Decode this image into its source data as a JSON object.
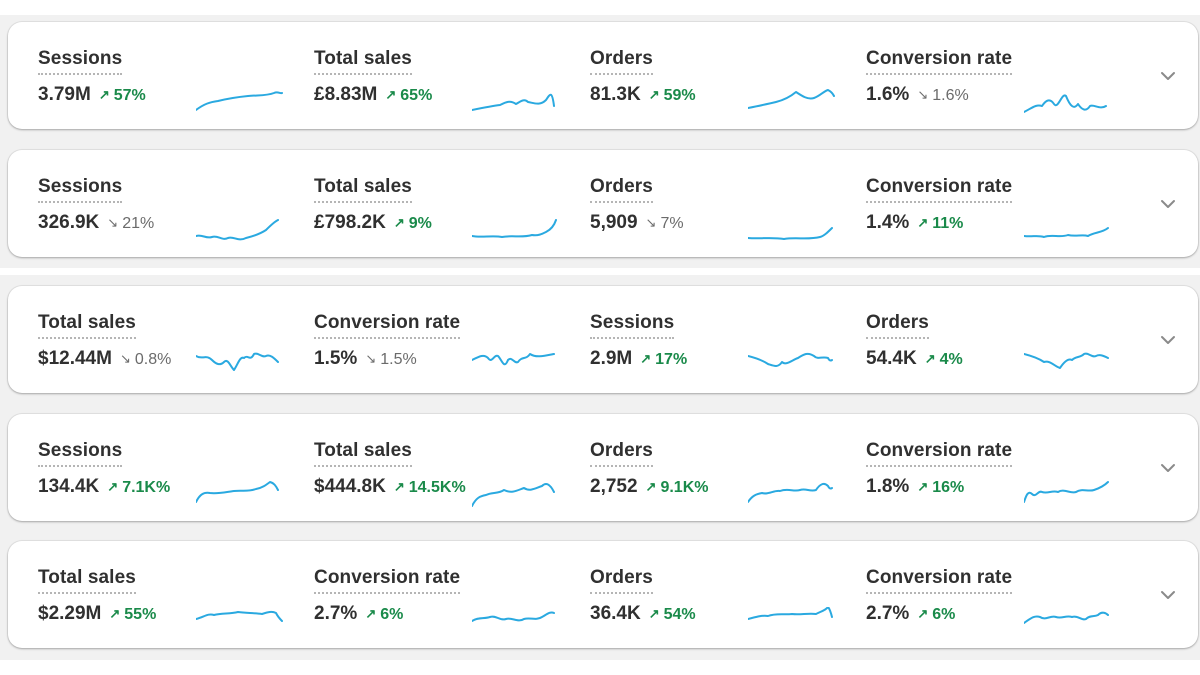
{
  "colors": {
    "sparkline": "#2aa9e0",
    "trend_up": "#1a8a4a",
    "trend_down": "#6b6b6b",
    "chevron": "#8a8a8a"
  },
  "icons": {
    "expand": "chevron-down-icon",
    "trend_up": "arrow-up-right-icon",
    "trend_down": "arrow-down-right-icon"
  },
  "cards": [
    {
      "metrics": [
        {
          "label": "Sessions",
          "value": "3.79M",
          "trend": "57%",
          "direction": "up"
        },
        {
          "label": "Total sales",
          "value": "£8.83M",
          "trend": "65%",
          "direction": "up"
        },
        {
          "label": "Orders",
          "value": "81.3K",
          "trend": "59%",
          "direction": "up"
        },
        {
          "label": "Conversion rate",
          "value": "1.6%",
          "trend": "1.6%",
          "direction": "down"
        }
      ]
    },
    {
      "metrics": [
        {
          "label": "Sessions",
          "value": "326.9K",
          "trend": "21%",
          "direction": "down"
        },
        {
          "label": "Total sales",
          "value": "£798.2K",
          "trend": "9%",
          "direction": "up"
        },
        {
          "label": "Orders",
          "value": "5,909",
          "trend": "7%",
          "direction": "down"
        },
        {
          "label": "Conversion rate",
          "value": "1.4%",
          "trend": "11%",
          "direction": "up"
        }
      ]
    },
    {
      "metrics": [
        {
          "label": "Total sales",
          "value": "$12.44M",
          "trend": "0.8%",
          "direction": "down"
        },
        {
          "label": "Conversion rate",
          "value": "1.5%",
          "trend": "1.5%",
          "direction": "down"
        },
        {
          "label": "Sessions",
          "value": "2.9M",
          "trend": "17%",
          "direction": "up"
        },
        {
          "label": "Orders",
          "value": "54.4K",
          "trend": "4%",
          "direction": "up"
        }
      ]
    },
    {
      "metrics": [
        {
          "label": "Sessions",
          "value": "134.4K",
          "trend": "7.1K%",
          "direction": "up"
        },
        {
          "label": "Total sales",
          "value": "$444.8K",
          "trend": "14.5K%",
          "direction": "up"
        },
        {
          "label": "Orders",
          "value": "2,752",
          "trend": "9.1K%",
          "direction": "up"
        },
        {
          "label": "Conversion rate",
          "value": "1.8%",
          "trend": "16%",
          "direction": "up"
        }
      ]
    },
    {
      "metrics": [
        {
          "label": "Total sales",
          "value": "$2.29M",
          "trend": "55%",
          "direction": "up"
        },
        {
          "label": "Conversion rate",
          "value": "2.7%",
          "trend": "6%",
          "direction": "up"
        },
        {
          "label": "Orders",
          "value": "36.4K",
          "trend": "54%",
          "direction": "up"
        },
        {
          "label": "Conversion rate",
          "value": "2.7%",
          "trend": "6%",
          "direction": "up"
        }
      ]
    }
  ]
}
